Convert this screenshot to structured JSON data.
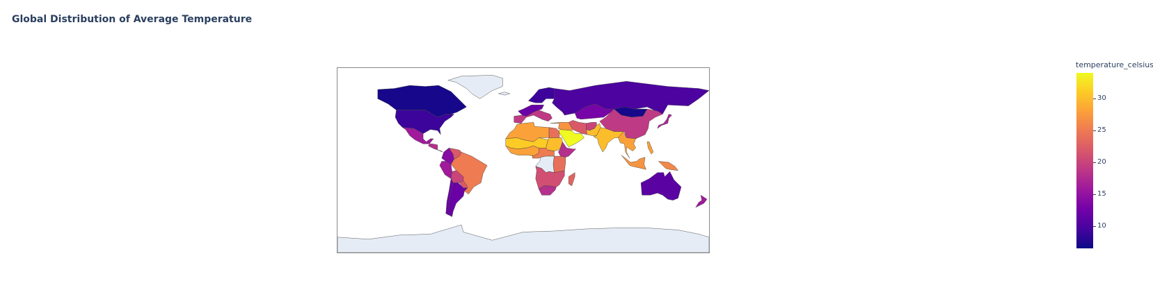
{
  "title": "Global Distribution of Average Temperature",
  "chart_data": {
    "type": "choropleth",
    "projection": "equirectangular",
    "title": "Global Distribution of Average Temperature",
    "colorbar": {
      "title": "temperature_celsius",
      "range": [
        6.5,
        34
      ],
      "ticks": [
        10,
        15,
        20,
        25,
        30
      ],
      "colorscale": [
        "#0d0887",
        "#46039f",
        "#7201a8",
        "#9c179e",
        "#bd3786",
        "#d8576b",
        "#ed7953",
        "#fb9f3a",
        "#fdca26",
        "#f0f921"
      ]
    },
    "missing_color": "#e5ecf6",
    "regions": [
      {
        "name": "Canada",
        "value": 7
      },
      {
        "name": "United States",
        "value": 9
      },
      {
        "name": "Mexico",
        "value": 16
      },
      {
        "name": "Central America",
        "value": 18
      },
      {
        "name": "Colombia",
        "value": 14
      },
      {
        "name": "Venezuela",
        "value": 22
      },
      {
        "name": "Peru",
        "value": 16
      },
      {
        "name": "Brazil",
        "value": 25
      },
      {
        "name": "Bolivia",
        "value": 20
      },
      {
        "name": "Paraguay",
        "value": 22
      },
      {
        "name": "Chile",
        "value": 12
      },
      {
        "name": "Argentina",
        "value": 12
      },
      {
        "name": "Greenland",
        "value": null
      },
      {
        "name": "Iceland",
        "value": null
      },
      {
        "name": "Northern Europe",
        "value": 9
      },
      {
        "name": "Western Europe",
        "value": 12
      },
      {
        "name": "Southern Europe",
        "value": 19
      },
      {
        "name": "Russia",
        "value": 10
      },
      {
        "name": "Kazakhstan",
        "value": 13
      },
      {
        "name": "Mongolia",
        "value": 7
      },
      {
        "name": "China",
        "value": 19
      },
      {
        "name": "Japan",
        "value": 17
      },
      {
        "name": "Middle East",
        "value": 27
      },
      {
        "name": "Arabian Peninsula",
        "value": 34
      },
      {
        "name": "Iran",
        "value": 22
      },
      {
        "name": "Afghanistan",
        "value": 20
      },
      {
        "name": "Pakistan",
        "value": 30
      },
      {
        "name": "India",
        "value": 30
      },
      {
        "name": "Southeast Asia",
        "value": 28
      },
      {
        "name": "Indonesia",
        "value": 27
      },
      {
        "name": "Philippines",
        "value": 28
      },
      {
        "name": "Papua New Guinea",
        "value": 26
      },
      {
        "name": "North Africa",
        "value": 28
      },
      {
        "name": "Sahel",
        "value": 31
      },
      {
        "name": "Egypt",
        "value": 24
      },
      {
        "name": "Sudan",
        "value": 30
      },
      {
        "name": "Ethiopia",
        "value": 18
      },
      {
        "name": "West Africa",
        "value": 28
      },
      {
        "name": "Central Africa",
        "value": 25
      },
      {
        "name": "DR Congo",
        "value": null
      },
      {
        "name": "East Africa",
        "value": 24
      },
      {
        "name": "Southern Africa",
        "value": 21
      },
      {
        "name": "South Africa",
        "value": 18
      },
      {
        "name": "Madagascar",
        "value": 23
      },
      {
        "name": "Australia",
        "value": 11
      },
      {
        "name": "New Zealand",
        "value": 16
      },
      {
        "name": "Antarctica",
        "value": null
      }
    ]
  }
}
